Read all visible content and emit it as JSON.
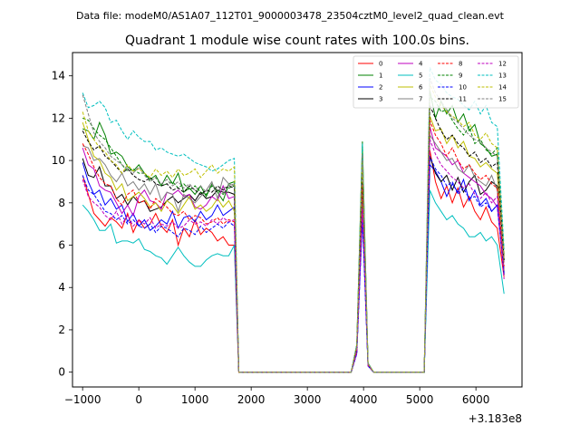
{
  "chart_data": {
    "type": "line",
    "suptitle": "Data file: modeM0/AS1A07_112T01_9000003478_23504cztM0_level2_quad_clean.evt",
    "title": "Quadrant 1 module wise count rates with 100.0s bins.",
    "xlabel": "",
    "ylabel": "",
    "x_offset_label": "+3.183e8",
    "xlim": [
      -1180,
      6820
    ],
    "ylim": [
      -0.7,
      15.1
    ],
    "x_ticks": [
      -1000,
      0,
      1000,
      2000,
      3000,
      4000,
      5000,
      6000
    ],
    "x_tick_labels": [
      "−1000",
      "0",
      "1000",
      "2000",
      "3000",
      "4000",
      "5000",
      "6000"
    ],
    "y_ticks": [
      0,
      2,
      4,
      6,
      8,
      10,
      12,
      14
    ],
    "y_tick_labels": [
      "0",
      "2",
      "4",
      "6",
      "8",
      "10",
      "12",
      "14"
    ],
    "legend_position": "top-right",
    "x_segments": {
      "seg1": {
        "start": -1000,
        "step": 100,
        "count": 28
      },
      "gap1": [
        1780,
        1880,
        1980,
        2100,
        2400,
        2800,
        3200,
        3600,
        3780
      ],
      "peak_x": [
        3880,
        3980,
        4080
      ],
      "gap2": [
        4180,
        4500,
        5000,
        5080
      ],
      "seg2": {
        "start": 5180,
        "step": 100,
        "count": 13
      },
      "end_x": 6500
    },
    "series": [
      {
        "name": "0",
        "color": "#ff0000",
        "dash": "solid",
        "seg1": [
          9.3,
          8.4,
          7.5,
          7.2,
          6.9,
          7.3,
          7.1,
          6.8,
          7.5,
          6.6,
          7.2,
          6.8,
          7.0,
          7.5,
          6.9,
          6.6,
          7.2,
          6.0,
          6.8,
          6.4,
          7.2,
          6.5,
          6.8,
          6.6,
          6.2,
          6.4,
          6.0,
          6.0
        ],
        "peak": 8.7,
        "seg2": [
          10.5,
          9.0,
          8.2,
          8.8,
          8.0,
          8.7,
          7.8,
          8.3,
          7.6,
          7.2,
          7.8,
          7.1,
          6.8
        ],
        "end": 4.5
      },
      {
        "name": "1",
        "color": "#008000",
        "dash": "solid",
        "seg1": [
          11.5,
          11.4,
          11.0,
          11.8,
          11.2,
          10.3,
          10.4,
          10.2,
          9.7,
          9.5,
          9.8,
          9.4,
          9.1,
          9.3,
          8.8,
          9.3,
          8.9,
          9.4,
          8.5,
          8.7,
          8.4,
          8.8,
          8.3,
          8.9,
          8.5,
          8.1,
          8.9,
          9.0
        ],
        "peak": 10.9,
        "seg2": [
          13.3,
          12.0,
          12.8,
          12.2,
          12.6,
          11.8,
          12.2,
          11.4,
          11.7,
          10.8,
          10.6,
          10.2,
          10.3
        ],
        "end": 5.3
      },
      {
        "name": "2",
        "color": "#0000ff",
        "dash": "solid",
        "seg1": [
          9.9,
          9.0,
          8.4,
          8.6,
          7.9,
          8.2,
          7.7,
          7.9,
          7.1,
          7.5,
          6.9,
          7.2,
          6.7,
          6.9,
          7.2,
          7.0,
          7.6,
          6.8,
          7.3,
          7.4,
          7.1,
          7.6,
          7.2,
          7.4,
          7.9,
          7.4,
          7.6,
          7.8
        ],
        "peak": 7.4,
        "seg2": [
          9.8,
          9.5,
          9.0,
          8.3,
          8.9,
          8.5,
          9.1,
          8.1,
          8.6,
          7.9,
          8.2,
          7.6,
          7.9
        ],
        "end": 4.7
      },
      {
        "name": "3",
        "color": "#000000",
        "dash": "solid",
        "seg1": [
          10.1,
          9.3,
          9.2,
          9.7,
          8.8,
          8.8,
          8.2,
          8.4,
          7.9,
          8.3,
          8.0,
          8.1,
          7.6,
          7.7,
          7.8,
          8.1,
          8.3,
          8.0,
          8.2,
          8.4,
          8.1,
          8.5,
          8.2,
          8.3,
          8.6,
          8.5,
          8.5,
          8.4
        ],
        "peak": 8.1,
        "seg2": [
          10.2,
          9.4,
          9.0,
          9.3,
          8.6,
          9.2,
          8.5,
          9.0,
          9.3,
          8.4,
          8.6,
          9.0,
          8.8
        ],
        "end": 4.6
      },
      {
        "name": "4",
        "color": "#bf00bf",
        "dash": "solid",
        "seg1": [
          10.6,
          9.8,
          9.6,
          8.8,
          8.6,
          8.5,
          8.0,
          7.5,
          7.9,
          7.4,
          8.3,
          8.6,
          8.1,
          8.0,
          7.7,
          8.5,
          8.4,
          8.6,
          8.3,
          8.4,
          7.8,
          7.7,
          7.9,
          8.3,
          8.1,
          8.8,
          8.2,
          8.3
        ],
        "peak": 8.2,
        "seg2": [
          11.6,
          10.6,
          10.4,
          10.2,
          9.8,
          10.0,
          9.4,
          9.2,
          9.0,
          8.8,
          8.4,
          8.2,
          7.8
        ],
        "end": 4.9
      },
      {
        "name": "5",
        "color": "#00bfbf",
        "dash": "solid",
        "seg1": [
          7.9,
          7.6,
          7.2,
          6.7,
          6.7,
          7.0,
          6.1,
          6.2,
          6.2,
          6.1,
          6.3,
          5.8,
          5.7,
          5.5,
          5.4,
          5.1,
          5.5,
          5.9,
          5.5,
          5.2,
          5.0,
          5.0,
          5.3,
          5.5,
          5.6,
          5.5,
          5.5,
          6.0
        ],
        "peak": 8.5,
        "seg2": [
          8.6,
          8.0,
          7.6,
          7.2,
          7.4,
          7.0,
          6.8,
          6.4,
          6.4,
          6.6,
          6.2,
          6.4,
          6.0
        ],
        "end": 3.7
      },
      {
        "name": "6",
        "color": "#bfbf00",
        "dash": "solid",
        "seg1": [
          11.8,
          11.0,
          10.2,
          10.0,
          9.4,
          9.2,
          8.6,
          8.9,
          8.1,
          8.3,
          8.5,
          8.2,
          7.8,
          8.0,
          7.6,
          8.1,
          7.9,
          7.5,
          7.9,
          8.3,
          7.7,
          7.9,
          7.6,
          7.8,
          8.2,
          7.8,
          8.1,
          7.6
        ],
        "peak": 10.6,
        "seg2": [
          12.1,
          11.4,
          11.5,
          10.8,
          11.2,
          10.6,
          10.9,
          10.2,
          10.1,
          9.7,
          9.9,
          9.6,
          9.4
        ],
        "end": 5.4
      },
      {
        "name": "7",
        "color": "#808080",
        "dash": "solid",
        "seg1": [
          10.7,
          10.6,
          10.0,
          10.1,
          9.8,
          9.3,
          9.0,
          9.4,
          8.8,
          9.0,
          8.6,
          8.9,
          8.4,
          8.9,
          8.1,
          8.5,
          8.4,
          7.6,
          8.4,
          8.2,
          8.0,
          8.3,
          8.6,
          9.0,
          8.2,
          9.2,
          8.9,
          8.8
        ],
        "peak": 8.3,
        "seg2": [
          11.2,
          10.8,
          10.4,
          10.0,
          10.1,
          9.6,
          9.4,
          9.8,
          9.2,
          9.0,
          8.8,
          9.3,
          8.6
        ],
        "end": 4.8
      },
      {
        "name": "8",
        "color": "#ff0000",
        "dash": "dashed",
        "seg1": [
          10.8,
          10.3,
          9.7,
          9.2,
          8.9,
          8.8,
          8.2,
          7.9,
          8.4,
          8.6,
          8.0,
          8.1,
          7.7,
          8.2,
          8.0,
          7.8,
          7.5,
          7.4,
          7.6,
          7.2,
          7.4,
          7.3,
          7.0,
          7.1,
          7.3,
          7.0,
          7.2,
          7.1
        ],
        "peak": 8.9,
        "seg2": [
          11.9,
          11.2,
          10.8,
          10.2,
          10.6,
          10.0,
          9.6,
          9.8,
          9.4,
          9.1,
          9.3,
          8.9,
          8.7
        ],
        "end": 5.0
      },
      {
        "name": "9",
        "color": "#008000",
        "dash": "dashed",
        "seg1": [
          12.0,
          11.9,
          11.5,
          11.2,
          11.0,
          10.6,
          10.2,
          9.8,
          9.5,
          9.6,
          9.4,
          9.4,
          9.0,
          9.2,
          8.8,
          8.9,
          9.0,
          8.7,
          8.9,
          8.6,
          8.8,
          8.5,
          8.4,
          8.8,
          8.6,
          8.4,
          8.7,
          8.8
        ],
        "peak": 10.2,
        "seg2": [
          13.0,
          12.8,
          12.3,
          12.4,
          11.9,
          11.5,
          11.2,
          11.6,
          10.8,
          11.0,
          10.5,
          10.3,
          10.6
        ],
        "end": 5.6
      },
      {
        "name": "10",
        "color": "#0000ff",
        "dash": "dashed",
        "seg1": [
          9.3,
          8.6,
          8.4,
          8.0,
          7.6,
          7.5,
          7.2,
          7.4,
          7.0,
          7.2,
          6.9,
          6.8,
          7.0,
          6.6,
          6.9,
          6.8,
          6.6,
          6.4,
          6.8,
          6.7,
          6.5,
          6.9,
          6.6,
          6.8,
          7.0,
          6.8,
          7.1,
          6.9
        ],
        "peak": 7.2,
        "seg2": [
          10.2,
          9.6,
          9.3,
          8.8,
          9.0,
          8.4,
          8.7,
          8.2,
          8.3,
          7.8,
          8.0,
          7.6,
          7.9
        ],
        "end": 4.6
      },
      {
        "name": "11",
        "color": "#000000",
        "dash": "dashed",
        "seg1": [
          11.4,
          10.9,
          10.5,
          10.7,
          10.2,
          10.0,
          9.7,
          9.4,
          9.6,
          9.3,
          9.1,
          9.0,
          9.2,
          8.9,
          8.8,
          8.9,
          8.6,
          8.7,
          8.5,
          8.8,
          8.6,
          8.4,
          8.6,
          8.5,
          8.8,
          8.6,
          8.8,
          8.7
        ],
        "peak": 9.6,
        "seg2": [
          12.6,
          12.0,
          11.4,
          11.0,
          11.2,
          10.8,
          10.6,
          10.2,
          10.4,
          9.9,
          10.1,
          9.7,
          9.9
        ],
        "end": 5.3
      },
      {
        "name": "12",
        "color": "#bf00bf",
        "dash": "dashed",
        "seg1": [
          9.1,
          8.3,
          8.0,
          7.8,
          7.4,
          7.2,
          7.6,
          7.0,
          7.4,
          6.9,
          7.2,
          7.0,
          7.3,
          6.8,
          7.0,
          6.9,
          7.1,
          6.8,
          6.9,
          7.2,
          7.0,
          7.1,
          6.9,
          7.2,
          7.0,
          7.3,
          7.1,
          7.2
        ],
        "peak": 7.7,
        "seg2": [
          11.0,
          10.3,
          9.8,
          9.5,
          9.2,
          9.0,
          8.7,
          8.9,
          8.4,
          8.2,
          8.5,
          8.0,
          8.3
        ],
        "end": 4.4
      },
      {
        "name": "13",
        "color": "#00bfbf",
        "dash": "dashed",
        "seg1": [
          13.2,
          12.5,
          12.6,
          12.8,
          12.5,
          11.8,
          11.9,
          11.4,
          11.0,
          11.4,
          11.1,
          10.9,
          10.9,
          10.5,
          10.6,
          10.4,
          10.3,
          10.2,
          10.3,
          10.1,
          9.9,
          9.8,
          9.7,
          9.5,
          9.6,
          9.8,
          10.0,
          10.1
        ],
        "peak": 10.8,
        "seg2": [
          14.4,
          13.8,
          13.6,
          13.2,
          13.0,
          12.9,
          12.6,
          12.4,
          12.8,
          12.2,
          12.6,
          11.8,
          11.6
        ],
        "end": 5.8
      },
      {
        "name": "14",
        "color": "#bfbf00",
        "dash": "dashed",
        "seg1": [
          12.3,
          11.4,
          11.0,
          10.6,
          10.4,
          10.0,
          9.8,
          9.4,
          9.8,
          9.5,
          9.6,
          9.4,
          9.2,
          9.6,
          9.3,
          9.5,
          9.2,
          9.6,
          9.3,
          9.4,
          9.6,
          9.2,
          9.5,
          9.8,
          9.4,
          9.6,
          9.5,
          9.7
        ],
        "peak": 10.0,
        "seg2": [
          13.6,
          13.0,
          12.6,
          12.3,
          12.1,
          11.9,
          11.6,
          11.8,
          11.2,
          11.0,
          11.3,
          10.8,
          10.6
        ],
        "end": 5.5
      },
      {
        "name": "15",
        "color": "#808080",
        "dash": "dashed",
        "seg1": [
          13.1,
          12.2,
          11.3,
          10.9,
          10.6,
          10.2,
          10.0,
          9.8,
          9.6,
          9.4,
          9.7,
          9.3,
          9.0,
          9.2,
          8.9,
          9.1,
          8.8,
          9.0,
          8.7,
          8.9,
          8.6,
          8.8,
          8.5,
          8.9,
          8.6,
          8.7,
          8.8,
          8.9
        ],
        "peak": 10.3,
        "seg2": [
          13.9,
          13.2,
          12.8,
          12.4,
          12.0,
          11.8,
          11.5,
          11.2,
          11.0,
          10.9,
          10.6,
          10.4,
          10.2
        ],
        "end": 5.2
      }
    ]
  }
}
